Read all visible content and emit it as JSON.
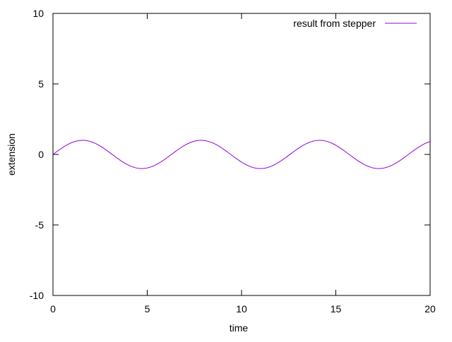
{
  "chart_data": {
    "type": "line",
    "title": "",
    "xlabel": "time",
    "ylabel": "extension",
    "xlim": [
      0,
      20
    ],
    "ylim": [
      -10,
      10
    ],
    "xticks": [
      0,
      5,
      10,
      15,
      20
    ],
    "yticks": [
      -10,
      -5,
      0,
      5,
      10
    ],
    "xtick_labels": [
      "0",
      "5",
      "10",
      "15",
      "20"
    ],
    "ytick_labels": [
      "-10",
      "-5",
      "0",
      "5",
      "10"
    ],
    "grid": false,
    "legend_position": "top-right",
    "series": [
      {
        "name": "result from stepper",
        "color": "#9400d3",
        "function": "sin(t)",
        "x": [
          0,
          0.5,
          1,
          1.5,
          2,
          2.5,
          3,
          3.5,
          4,
          4.5,
          5,
          5.5,
          6,
          6.5,
          7,
          7.5,
          8,
          8.5,
          9,
          9.5,
          10,
          10.5,
          11,
          11.5,
          12,
          12.5,
          13,
          13.5,
          14,
          14.5,
          15,
          15.5,
          16,
          16.5,
          17,
          17.5,
          18,
          18.5,
          19,
          19.5,
          20
        ],
        "y": [
          0,
          0.479,
          0.841,
          0.997,
          0.909,
          0.598,
          0.141,
          -0.351,
          -0.757,
          -0.978,
          -0.959,
          -0.706,
          -0.279,
          0.215,
          0.657,
          0.938,
          0.989,
          0.798,
          0.412,
          -0.075,
          -0.544,
          -0.88,
          -1.0,
          -0.875,
          -0.537,
          -0.066,
          0.42,
          0.803,
          0.991,
          0.935,
          0.65,
          0.206,
          -0.288,
          -0.712,
          -0.961,
          -0.976,
          -0.751,
          -0.342,
          0.15,
          0.604,
          0.913
        ]
      }
    ]
  }
}
